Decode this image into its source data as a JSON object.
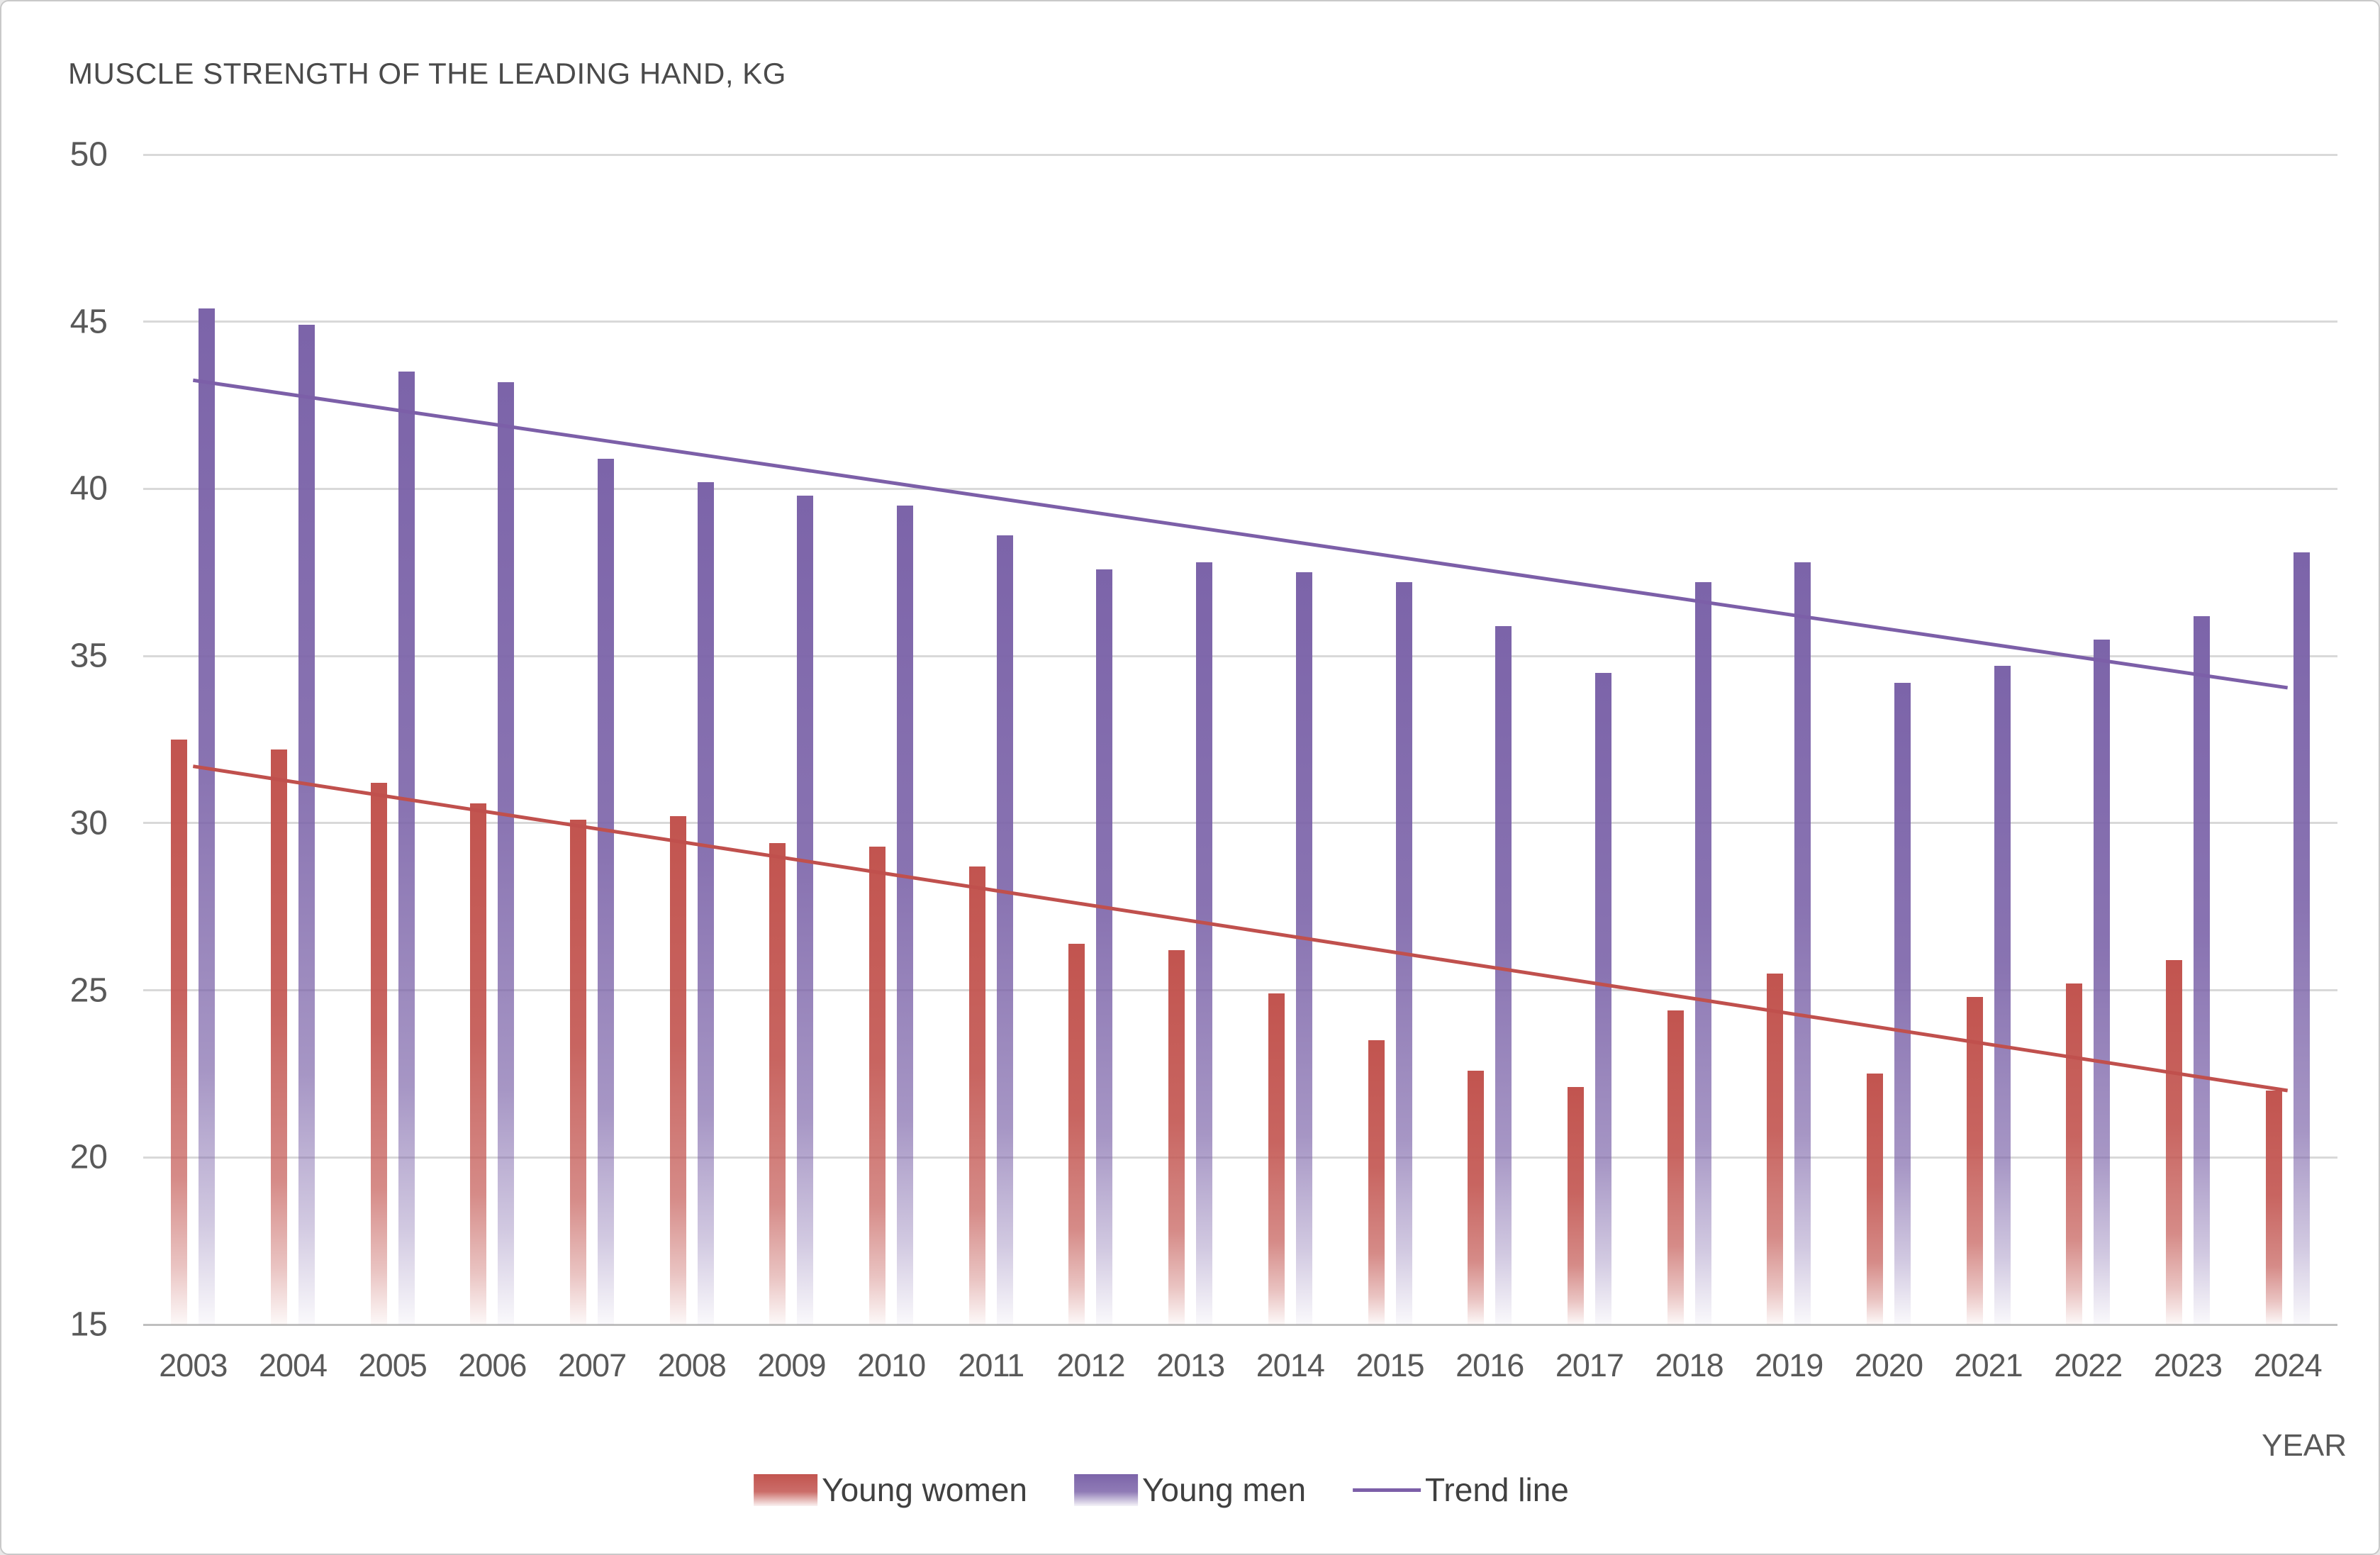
{
  "title": "MUSCLE STRENGTH OF THE LEADING HAND, KG",
  "axis": {
    "x_label": "YEAR",
    "y_min": 15,
    "y_max": 50
  },
  "legend": {
    "women": {
      "label": "Young women"
    },
    "men": {
      "label": "Young men"
    },
    "trend": {
      "label": "Trend line"
    }
  },
  "colors": {
    "women_bar": "#C2544F",
    "men_bar": "#7C64A9",
    "women_trend": "#C0504D",
    "men_trend": "#7C5FA8",
    "gridline": "#D9D9D9",
    "axis_line": "#BFBFBF",
    "text": "#595959"
  },
  "chart_data": {
    "type": "bar",
    "title": "MUSCLE STRENGTH OF THE LEADING HAND, KG",
    "xlabel": "YEAR",
    "ylabel": "",
    "ylim": [
      15,
      50
    ],
    "yticks": [
      15,
      20,
      25,
      30,
      35,
      40,
      45,
      50
    ],
    "grid": true,
    "legend_position": "bottom",
    "categories": [
      2003,
      2004,
      2005,
      2006,
      2007,
      2008,
      2009,
      2010,
      2011,
      2012,
      2013,
      2014,
      2015,
      2016,
      2017,
      2018,
      2019,
      2020,
      2021,
      2022,
      2023,
      2024
    ],
    "series": [
      {
        "name": "Young women",
        "color": "#C2544F",
        "values": [
          32.5,
          32.2,
          31.2,
          30.6,
          30.1,
          30.2,
          29.4,
          29.3,
          28.7,
          26.4,
          26.2,
          24.9,
          23.5,
          22.6,
          22.1,
          24.4,
          25.5,
          22.5,
          24.8,
          25.2,
          25.9,
          22.0
        ]
      },
      {
        "name": "Young men",
        "color": "#7C64A9",
        "values": [
          45.4,
          44.9,
          43.5,
          43.2,
          40.9,
          40.2,
          39.8,
          39.5,
          38.6,
          37.6,
          37.8,
          37.5,
          37.2,
          35.9,
          34.5,
          37.2,
          37.8,
          34.2,
          34.7,
          35.5,
          36.2,
          38.1
        ]
      }
    ],
    "trend_lines": [
      {
        "name": "Young men trend line",
        "color": "#7C5FA8",
        "start_value": 43.25,
        "end_value": 34.05
      },
      {
        "name": "Young women trend line",
        "color": "#C0504D",
        "start_value": 31.7,
        "end_value": 22.0
      }
    ]
  }
}
